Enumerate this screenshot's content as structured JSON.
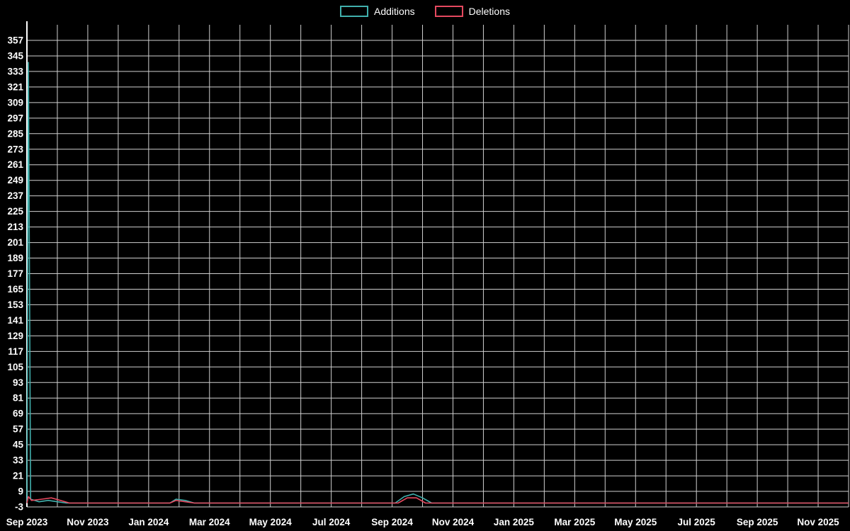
{
  "legend": {
    "items": [
      {
        "label": "Additions",
        "color": "#41b0ad"
      },
      {
        "label": "Deletions",
        "color": "#e5495f"
      }
    ]
  },
  "chart_data": {
    "type": "line",
    "title": "",
    "background": "#000000",
    "grid": true,
    "legend_position": "top-center",
    "style": {
      "grid_color": "#cfcfcf",
      "axis_color": "#ffffff",
      "text_color": "#ffffff"
    },
    "x_axis": {
      "tick_labels": [
        "Sep 2023",
        "Nov 2023",
        "Jan 2024",
        "Mar 2024",
        "May 2024",
        "Jul 2024",
        "Sep 2024",
        "Nov 2024",
        "Jan 2025",
        "Mar 2025",
        "May 2025",
        "Jul 2025",
        "Sep 2025",
        "Nov 2025"
      ],
      "months_total": 27,
      "label_every_months": 2
    },
    "y_axis": {
      "min": -3,
      "max": 357,
      "step": 12,
      "tick_labels": [
        "-3",
        "9",
        "21",
        "33",
        "45",
        "57",
        "69",
        "81",
        "93",
        "105",
        "117",
        "129",
        "141",
        "153",
        "165",
        "177",
        "189",
        "201",
        "213",
        "225",
        "237",
        "249",
        "261",
        "273",
        "285",
        "297",
        "309",
        "321",
        "333",
        "345",
        "357"
      ]
    },
    "series": [
      {
        "name": "Additions",
        "color": "#41b0ad",
        "points": [
          [
            0,
            0
          ],
          [
            0.05,
            340
          ],
          [
            0.12,
            3
          ],
          [
            0.4,
            1
          ],
          [
            0.7,
            2
          ],
          [
            1.0,
            1
          ],
          [
            1.3,
            0
          ],
          [
            4.7,
            0
          ],
          [
            4.9,
            3
          ],
          [
            5.2,
            2
          ],
          [
            5.5,
            0
          ],
          [
            12.1,
            0
          ],
          [
            12.4,
            5
          ],
          [
            12.7,
            7
          ],
          [
            13.0,
            4
          ],
          [
            13.3,
            0
          ],
          [
            27,
            0
          ]
        ]
      },
      {
        "name": "Deletions",
        "color": "#e5495f",
        "points": [
          [
            0,
            0
          ],
          [
            0.05,
            5
          ],
          [
            0.15,
            2
          ],
          [
            0.5,
            3
          ],
          [
            0.8,
            4
          ],
          [
            1.1,
            2
          ],
          [
            1.4,
            0
          ],
          [
            4.7,
            0
          ],
          [
            4.9,
            2
          ],
          [
            5.2,
            1
          ],
          [
            5.5,
            0
          ],
          [
            12.2,
            0
          ],
          [
            12.5,
            4
          ],
          [
            12.8,
            4
          ],
          [
            13.1,
            0
          ],
          [
            27,
            0
          ]
        ]
      }
    ]
  }
}
